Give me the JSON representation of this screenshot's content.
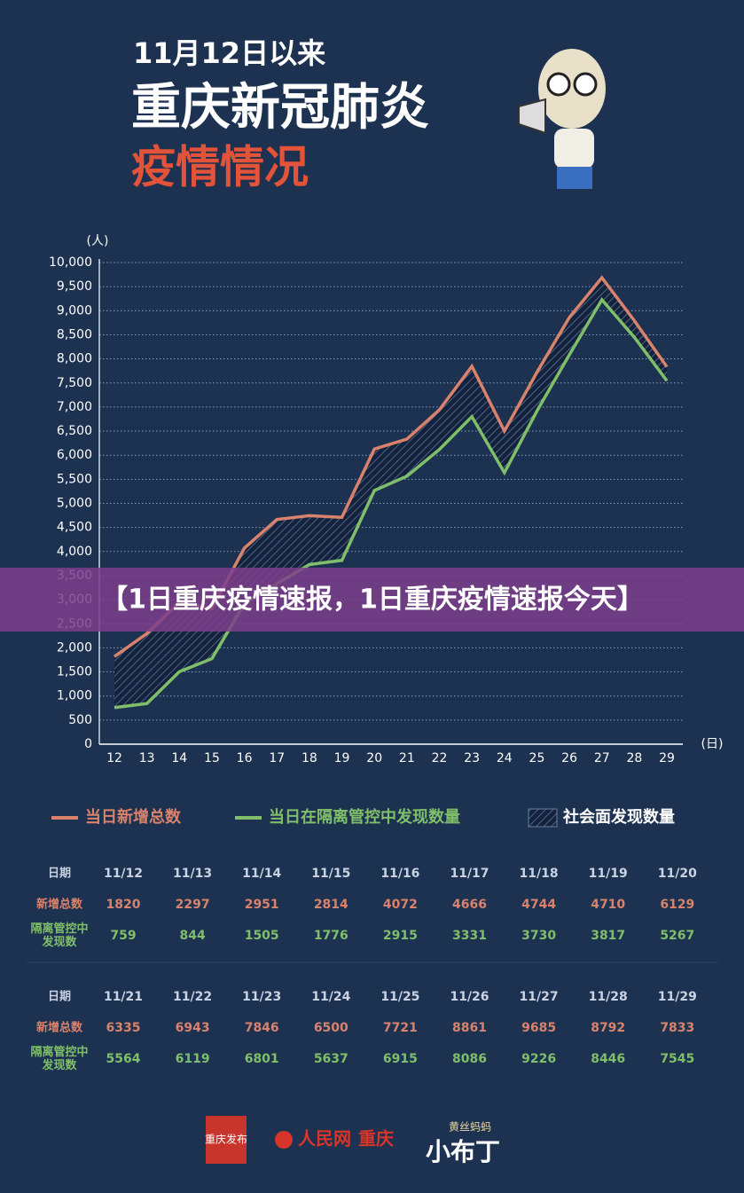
{
  "header": {
    "subtitle": "11月12日以来",
    "title": "重庆新冠肺炎",
    "title2": "疫情情况"
  },
  "banner": "【1日重庆疫情速报，1日重庆疫情速报今天】",
  "chart_data": {
    "type": "line",
    "y_label": "(人)",
    "x_label": "(日)",
    "categories": [
      "12",
      "13",
      "14",
      "15",
      "16",
      "17",
      "18",
      "19",
      "20",
      "21",
      "22",
      "23",
      "24",
      "25",
      "26",
      "27",
      "28",
      "29"
    ],
    "series": [
      {
        "name": "当日新增总数",
        "color": "#d9826c",
        "values": [
          1820,
          2297,
          2951,
          2814,
          4072,
          4666,
          4744,
          4710,
          6129,
          6335,
          6943,
          7846,
          6500,
          7721,
          8861,
          9685,
          8792,
          7833
        ]
      },
      {
        "name": "当日在隔离管控中发现数量",
        "color": "#7fbf6a",
        "values": [
          759,
          844,
          1505,
          1776,
          2915,
          3331,
          3730,
          3817,
          5267,
          5564,
          6119,
          6801,
          5637,
          6915,
          8086,
          9226,
          8446,
          7545
        ]
      }
    ],
    "band_legend": "社会面发现数量",
    "ylim": [
      0,
      10000
    ],
    "yticks": [
      0,
      500,
      {
        "value": 1000,
        "label": "1,000"
      },
      {
        "value": 1500,
        "label": "1,500"
      },
      {
        "value": 2000,
        "label": "2,000"
      },
      {
        "value": 2500,
        "label": "2,500"
      },
      {
        "value": 3000,
        "label": "3,000"
      },
      {
        "value": 3500,
        "label": "3,500"
      },
      {
        "value": 4000,
        "label": "4,000"
      },
      {
        "value": 4500,
        "label": "4,500"
      },
      {
        "value": 5000,
        "label": "5,000"
      },
      {
        "value": 5500,
        "label": "5,500"
      },
      {
        "value": 6000,
        "label": "6,000"
      },
      {
        "value": 6500,
        "label": "6,500"
      },
      {
        "value": 7000,
        "label": "7,000"
      },
      {
        "value": 7500,
        "label": "7,500"
      },
      {
        "value": 8000,
        "label": "8,000"
      },
      {
        "value": 8500,
        "label": "8,500"
      },
      {
        "value": 9000,
        "label": "9,000"
      },
      {
        "value": 9500,
        "label": "9,500"
      },
      {
        "value": 10000,
        "label": "10,000"
      }
    ],
    "grid": true
  },
  "tables": [
    {
      "header": "日期",
      "dates": [
        "11/12",
        "11/13",
        "11/14",
        "11/15",
        "11/16",
        "11/17",
        "11/18",
        "11/19",
        "11/20"
      ],
      "row_labels": [
        "新增总数",
        "隔离管控中发现数"
      ]
    },
    {
      "header": "日期",
      "dates": [
        "11/21",
        "11/22",
        "11/23",
        "11/24",
        "11/25",
        "11/26",
        "11/27",
        "11/28",
        "11/29"
      ],
      "row_labels": [
        "新增总数",
        "隔离管控中发现数"
      ]
    }
  ],
  "footer": {
    "logos": [
      "重庆发布",
      "人民网",
      "重庆",
      "黄丝蚂蚂",
      "小布丁"
    ]
  }
}
